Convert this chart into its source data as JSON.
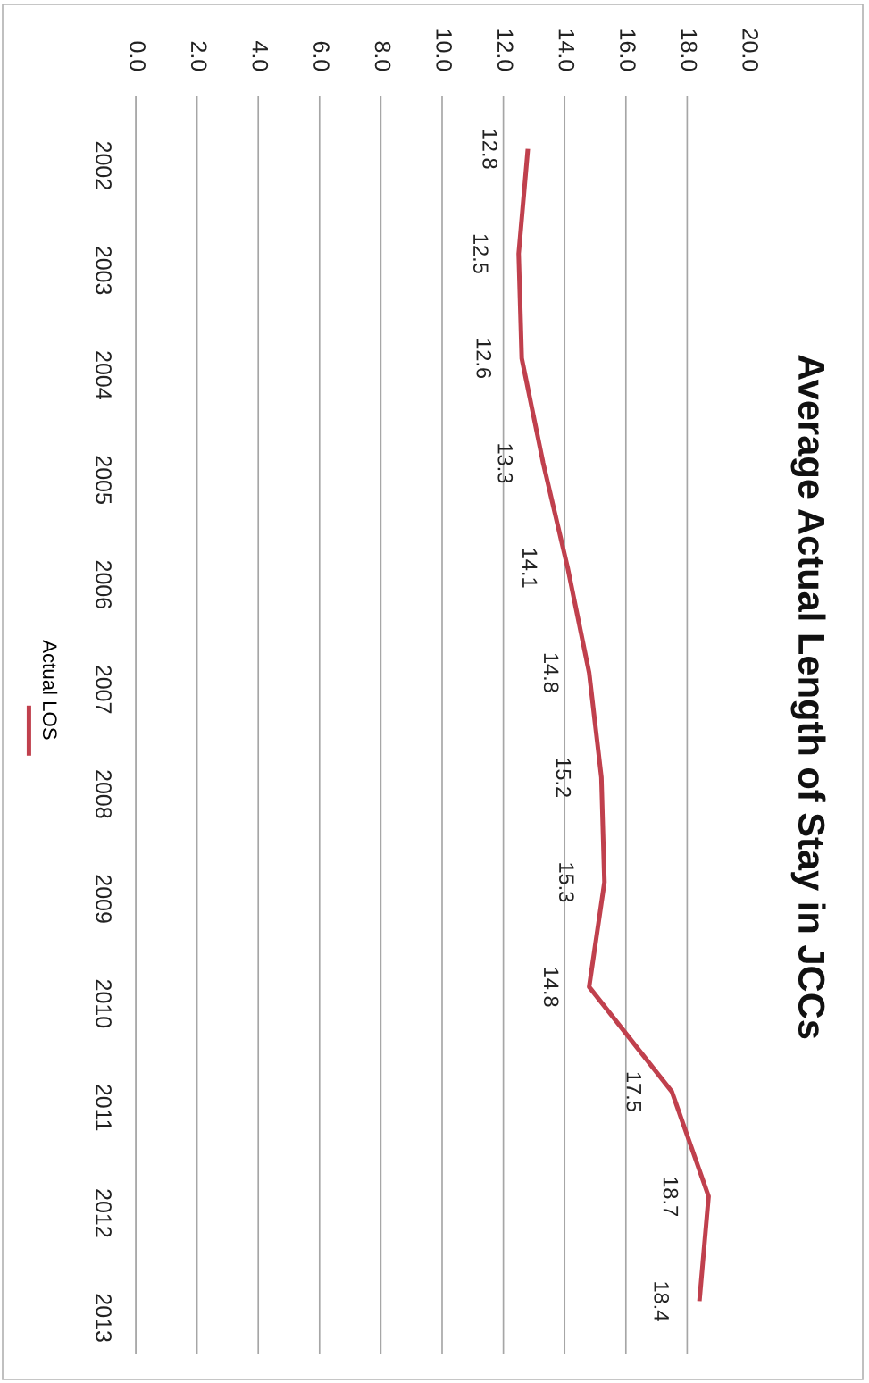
{
  "chart_data": {
    "type": "line",
    "title": "Average Actual Length of Stay in JCCs",
    "orientation": "horizontal",
    "categories": [
      "2002",
      "2003",
      "2004",
      "2005",
      "2006",
      "2007",
      "2008",
      "2009",
      "2010",
      "2011",
      "2012",
      "2013"
    ],
    "series": [
      {
        "name": "Actual LOS",
        "color": "#c0404d",
        "values": [
          12.8,
          12.5,
          12.6,
          13.3,
          14.1,
          14.8,
          15.2,
          15.3,
          14.8,
          17.5,
          18.7,
          18.4
        ]
      }
    ],
    "xlim": [
      0,
      20
    ],
    "xticks": [
      {
        "value": 0,
        "label": "0.0"
      },
      {
        "value": 2,
        "label": "2.0"
      },
      {
        "value": 4,
        "label": "4.0"
      },
      {
        "value": 6,
        "label": "6.0"
      },
      {
        "value": 8,
        "label": "8.0"
      },
      {
        "value": 10,
        "label": "10.0"
      },
      {
        "value": 12,
        "label": "12.0"
      },
      {
        "value": 14,
        "label": "14.0"
      },
      {
        "value": 16,
        "label": "16.0"
      },
      {
        "value": 18,
        "label": "18.0"
      },
      {
        "value": 20,
        "label": "20.0"
      }
    ],
    "grid": "x",
    "legend": "left",
    "data_labels": true
  }
}
